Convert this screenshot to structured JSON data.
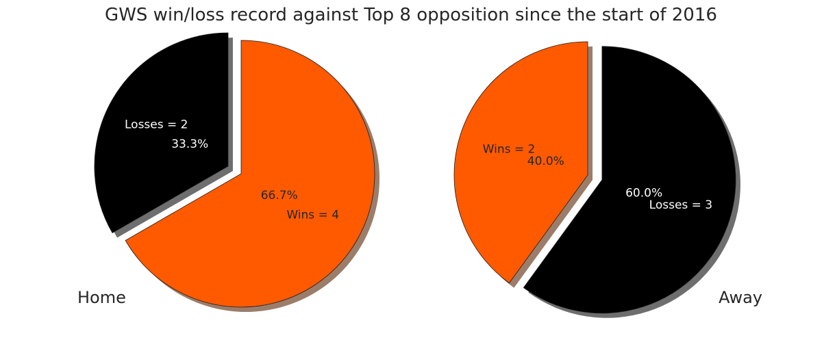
{
  "chart_data": [
    {
      "type": "pie",
      "title": "Home",
      "categories": [
        "Wins",
        "Losses"
      ],
      "values": [
        4,
        2
      ],
      "labels": [
        "Wins = 4",
        "Losses = 2"
      ],
      "percent_labels": [
        "66.7%",
        "33.3%"
      ],
      "colors": [
        "#ff5a00",
        "#000000"
      ],
      "label_colors": [
        "#262626",
        "#ffffff"
      ],
      "exploded": [
        false,
        true
      ],
      "start_angle_deg": 90,
      "direction": "clockwise",
      "shadow": true
    },
    {
      "type": "pie",
      "title": "Away",
      "categories": [
        "Wins",
        "Losses"
      ],
      "values": [
        2,
        3
      ],
      "labels": [
        "Wins = 2",
        "Losses = 3"
      ],
      "percent_labels": [
        "40.0%",
        "60.0%"
      ],
      "colors": [
        "#ff5a00",
        "#000000"
      ],
      "label_colors": [
        "#262626",
        "#ffffff"
      ],
      "exploded": [
        false,
        true
      ],
      "start_angle_deg": 90,
      "direction": "counterclockwise",
      "shadow": true
    }
  ],
  "figure": {
    "title": "GWS win/loss record against Top 8 opposition since the start of 2016"
  }
}
